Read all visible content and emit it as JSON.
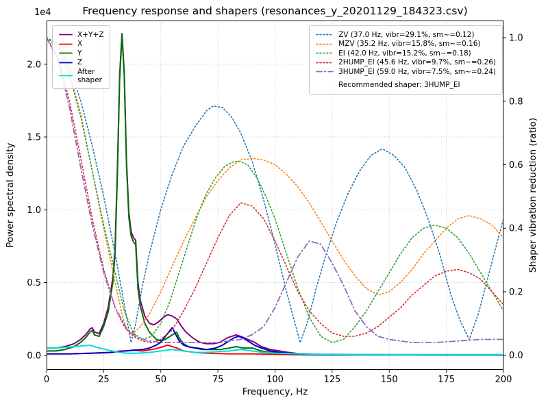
{
  "title": "Frequency response and shapers (resonances_y_20201129_184323.csv)",
  "chart_data": {
    "type": "line",
    "xlabel": "Frequency, Hz",
    "ylabel_left": "Power spectral density",
    "ylabel_right": "Shaper vibration reduction (ratio)",
    "y_left_offset": "1e4",
    "xlim": [
      0,
      200
    ],
    "ylim_left": [
      -0.1,
      2.3
    ],
    "ylim_right": [
      -0.046,
      1.054
    ],
    "grid": true,
    "legend_position_left": "upper left",
    "legend_position_right": "upper right",
    "x_ticks": [
      "0",
      "25",
      "50",
      "75",
      "100",
      "125",
      "150",
      "175",
      "200"
    ],
    "y_left_ticks": [
      "0.0",
      "0.5",
      "1.0",
      "1.5",
      "2.0"
    ],
    "y_right_ticks": [
      "0.0",
      "0.2",
      "0.4",
      "0.6",
      "0.8",
      "1.0"
    ],
    "series": [
      {
        "name": "X+Y+Z",
        "axis": "left",
        "color": "#800080",
        "style": "solid",
        "width": 2,
        "x": [
          0,
          4,
          8,
          12,
          15,
          17,
          19,
          20,
          21,
          23,
          25,
          27,
          29,
          30,
          31,
          32,
          33,
          34,
          35,
          36,
          37,
          38,
          39,
          40,
          41,
          43,
          45,
          47,
          49,
          51,
          53,
          55,
          57,
          59,
          61,
          64,
          67,
          70,
          73,
          76,
          79,
          81,
          83,
          85,
          88,
          91,
          94,
          98,
          102,
          106,
          110,
          120,
          140,
          170,
          200
        ],
        "y": [
          0.05,
          0.05,
          0.06,
          0.08,
          0.11,
          0.14,
          0.18,
          0.19,
          0.16,
          0.15,
          0.22,
          0.33,
          0.53,
          0.74,
          1.28,
          1.93,
          2.21,
          1.94,
          1.33,
          0.98,
          0.85,
          0.81,
          0.79,
          0.5,
          0.38,
          0.27,
          0.22,
          0.21,
          0.23,
          0.26,
          0.28,
          0.27,
          0.25,
          0.2,
          0.16,
          0.12,
          0.09,
          0.08,
          0.08,
          0.09,
          0.12,
          0.13,
          0.14,
          0.13,
          0.11,
          0.09,
          0.06,
          0.04,
          0.03,
          0.02,
          0.012,
          0.007,
          0.005,
          0.004,
          0.004
        ]
      },
      {
        "name": "X",
        "axis": "left",
        "color": "#ff0000",
        "style": "solid",
        "width": 2,
        "x": [
          0,
          10,
          20,
          28,
          32,
          35,
          38,
          42,
          46,
          49,
          51,
          53,
          55,
          57,
          60,
          65,
          70,
          80,
          90,
          100,
          110,
          140,
          200
        ],
        "y": [
          0.01,
          0.01,
          0.015,
          0.02,
          0.03,
          0.03,
          0.035,
          0.03,
          0.04,
          0.05,
          0.06,
          0.07,
          0.06,
          0.05,
          0.03,
          0.02,
          0.015,
          0.01,
          0.01,
          0.007,
          0.005,
          0.004,
          0.003
        ]
      },
      {
        "name": "Y",
        "axis": "left",
        "color": "#007000",
        "style": "solid",
        "width": 2,
        "x": [
          0,
          4,
          8,
          12,
          15,
          17,
          19,
          20,
          21,
          23,
          25,
          27,
          29,
          30,
          31,
          32,
          33,
          34,
          35,
          36,
          37,
          38,
          39,
          40,
          41,
          43,
          45,
          48,
          50,
          52,
          54,
          56,
          57,
          58,
          60,
          62,
          65,
          68,
          72,
          76,
          80,
          83,
          86,
          90,
          94,
          98,
          102,
          106,
          110,
          120,
          140,
          170,
          200
        ],
        "y": [
          0.03,
          0.03,
          0.04,
          0.06,
          0.09,
          0.12,
          0.16,
          0.17,
          0.14,
          0.13,
          0.2,
          0.3,
          0.5,
          0.7,
          1.25,
          1.9,
          2.2,
          1.92,
          1.3,
          0.95,
          0.82,
          0.78,
          0.76,
          0.46,
          0.34,
          0.22,
          0.16,
          0.11,
          0.1,
          0.11,
          0.13,
          0.15,
          0.16,
          0.12,
          0.08,
          0.06,
          0.05,
          0.04,
          0.04,
          0.04,
          0.05,
          0.06,
          0.05,
          0.05,
          0.03,
          0.02,
          0.015,
          0.01,
          0.008,
          0.005,
          0.004,
          0.003,
          0.003
        ]
      },
      {
        "name": "Z",
        "axis": "left",
        "color": "#0000cd",
        "style": "solid",
        "width": 2,
        "x": [
          0,
          10,
          20,
          28,
          34,
          38,
          42,
          45,
          48,
          50,
          52,
          54,
          55,
          56,
          58,
          60,
          63,
          66,
          70,
          74,
          77,
          80,
          82,
          84,
          86,
          88,
          91,
          94,
          98,
          102,
          105,
          108,
          112,
          120,
          140,
          170,
          200
        ],
        "y": [
          0.01,
          0.01,
          0.015,
          0.02,
          0.03,
          0.035,
          0.04,
          0.05,
          0.07,
          0.09,
          0.13,
          0.17,
          0.19,
          0.16,
          0.1,
          0.07,
          0.055,
          0.05,
          0.04,
          0.05,
          0.07,
          0.1,
          0.12,
          0.13,
          0.12,
          0.1,
          0.07,
          0.05,
          0.03,
          0.02,
          0.015,
          0.01,
          0.007,
          0.005,
          0.004,
          0.003,
          0.003
        ]
      },
      {
        "name": "After shaper",
        "axis": "left",
        "color": "#00dcdc",
        "style": "solid",
        "width": 2,
        "x": [
          0,
          4,
          8,
          12,
          16,
          19,
          22,
          26,
          30,
          35,
          40,
          45,
          50,
          55,
          60,
          65,
          70,
          75,
          80,
          85,
          90,
          95,
          100,
          110,
          120,
          140,
          160,
          180,
          200
        ],
        "y": [
          0.05,
          0.05,
          0.055,
          0.06,
          0.065,
          0.07,
          0.055,
          0.04,
          0.025,
          0.015,
          0.015,
          0.02,
          0.03,
          0.04,
          0.03,
          0.02,
          0.02,
          0.025,
          0.03,
          0.04,
          0.03,
          0.02,
          0.015,
          0.01,
          0.008,
          0.006,
          0.005,
          0.005,
          0.005
        ]
      },
      {
        "name": "ZV",
        "axis": "right",
        "color": "#1f77b4",
        "style": "dotted",
        "width": 1.6,
        "x": [
          0,
          5,
          10,
          15,
          20,
          25,
          30,
          33,
          35,
          37,
          39,
          42,
          45,
          50,
          55,
          60,
          65,
          70,
          73,
          77,
          81,
          85,
          90,
          95,
          100,
          105,
          108,
          111,
          114,
          118,
          122,
          127,
          132,
          137,
          142,
          147,
          152,
          157,
          162,
          167,
          172,
          177,
          181,
          185,
          189,
          193,
          197,
          200
        ],
        "y": [
          1.0,
          0.98,
          0.91,
          0.8,
          0.66,
          0.5,
          0.32,
          0.2,
          0.12,
          0.04,
          0.1,
          0.22,
          0.32,
          0.46,
          0.57,
          0.66,
          0.72,
          0.77,
          0.785,
          0.78,
          0.75,
          0.7,
          0.61,
          0.49,
          0.35,
          0.2,
          0.12,
          0.04,
          0.1,
          0.21,
          0.31,
          0.42,
          0.51,
          0.58,
          0.63,
          0.65,
          0.63,
          0.59,
          0.52,
          0.43,
          0.32,
          0.19,
          0.11,
          0.05,
          0.13,
          0.24,
          0.35,
          0.43
        ]
      },
      {
        "name": "MZV",
        "axis": "right",
        "color": "#ff7f0e",
        "style": "dotted",
        "width": 1.6,
        "x": [
          0,
          5,
          10,
          15,
          20,
          25,
          30,
          33,
          35,
          38,
          41,
          45,
          50,
          55,
          60,
          65,
          70,
          75,
          80,
          85,
          90,
          95,
          100,
          105,
          110,
          115,
          120,
          125,
          130,
          135,
          140,
          145,
          150,
          155,
          160,
          165,
          170,
          175,
          180,
          185,
          190,
          195,
          200
        ],
        "y": [
          1.0,
          0.97,
          0.89,
          0.76,
          0.58,
          0.4,
          0.23,
          0.13,
          0.08,
          0.07,
          0.09,
          0.13,
          0.2,
          0.28,
          0.36,
          0.43,
          0.5,
          0.55,
          0.59,
          0.615,
          0.62,
          0.615,
          0.6,
          0.57,
          0.53,
          0.48,
          0.42,
          0.36,
          0.3,
          0.25,
          0.21,
          0.19,
          0.2,
          0.23,
          0.27,
          0.32,
          0.36,
          0.4,
          0.43,
          0.44,
          0.43,
          0.41,
          0.37
        ]
      },
      {
        "name": "EI",
        "axis": "right",
        "color": "#2ca02c",
        "style": "dotted",
        "width": 1.6,
        "x": [
          0,
          5,
          10,
          15,
          20,
          25,
          30,
          34,
          38,
          42,
          46,
          50,
          54,
          58,
          62,
          66,
          70,
          74,
          78,
          82,
          85,
          88,
          92,
          96,
          100,
          105,
          110,
          115,
          120,
          125,
          130,
          135,
          140,
          145,
          150,
          155,
          160,
          165,
          170,
          175,
          180,
          185,
          190,
          195,
          200
        ],
        "y": [
          1.0,
          0.97,
          0.88,
          0.75,
          0.58,
          0.41,
          0.26,
          0.14,
          0.07,
          0.05,
          0.06,
          0.1,
          0.17,
          0.26,
          0.35,
          0.44,
          0.51,
          0.56,
          0.595,
          0.61,
          0.61,
          0.6,
          0.56,
          0.5,
          0.43,
          0.32,
          0.21,
          0.12,
          0.06,
          0.04,
          0.05,
          0.09,
          0.14,
          0.2,
          0.26,
          0.32,
          0.37,
          0.4,
          0.41,
          0.4,
          0.37,
          0.32,
          0.26,
          0.2,
          0.14
        ]
      },
      {
        "name": "2HUMP_EI",
        "axis": "right",
        "color": "#d62728",
        "style": "dotted",
        "width": 1.6,
        "x": [
          0,
          5,
          10,
          15,
          20,
          25,
          30,
          34,
          38,
          42,
          46,
          50,
          55,
          60,
          65,
          70,
          75,
          80,
          85,
          90,
          95,
          100,
          105,
          110,
          115,
          120,
          125,
          130,
          135,
          140,
          145,
          150,
          155,
          160,
          165,
          170,
          175,
          180,
          185,
          190,
          195,
          200
        ],
        "y": [
          1.0,
          0.94,
          0.8,
          0.62,
          0.43,
          0.27,
          0.15,
          0.09,
          0.06,
          0.045,
          0.04,
          0.05,
          0.08,
          0.14,
          0.21,
          0.29,
          0.37,
          0.44,
          0.48,
          0.47,
          0.43,
          0.36,
          0.28,
          0.2,
          0.14,
          0.1,
          0.07,
          0.06,
          0.06,
          0.07,
          0.09,
          0.12,
          0.15,
          0.19,
          0.22,
          0.25,
          0.265,
          0.27,
          0.26,
          0.24,
          0.2,
          0.16
        ]
      },
      {
        "name": "3HUMP_EI",
        "axis": "right",
        "color": "#9467bd",
        "style": "dashdot",
        "width": 1.8,
        "x": [
          0,
          5,
          10,
          15,
          20,
          25,
          30,
          35,
          40,
          45,
          50,
          55,
          60,
          65,
          70,
          75,
          80,
          85,
          90,
          95,
          100,
          105,
          110,
          115,
          120,
          125,
          130,
          135,
          140,
          145,
          150,
          160,
          170,
          180,
          190,
          200
        ],
        "y": [
          1.0,
          0.93,
          0.78,
          0.59,
          0.41,
          0.26,
          0.15,
          0.085,
          0.055,
          0.045,
          0.04,
          0.04,
          0.04,
          0.04,
          0.04,
          0.04,
          0.045,
          0.05,
          0.065,
          0.09,
          0.15,
          0.23,
          0.31,
          0.36,
          0.35,
          0.29,
          0.22,
          0.14,
          0.09,
          0.06,
          0.05,
          0.04,
          0.04,
          0.045,
          0.05,
          0.05
        ]
      }
    ]
  },
  "legend_left": [
    {
      "label": "X+Y+Z",
      "color": "#800080",
      "style": "solid"
    },
    {
      "label": "X",
      "color": "#ff0000",
      "style": "solid"
    },
    {
      "label": "Y",
      "color": "#007000",
      "style": "solid"
    },
    {
      "label": "Z",
      "color": "#0000cd",
      "style": "solid"
    },
    {
      "label": "After\nshaper",
      "color": "#00dcdc",
      "style": "solid"
    }
  ],
  "legend_right": {
    "entries": [
      {
        "label": "ZV (37.0 Hz, vibr=29.1%, sm~=0.12)",
        "color": "#1f77b4",
        "style": "dotted"
      },
      {
        "label": "MZV (35.2 Hz, vibr=15.8%, sm~=0.16)",
        "color": "#ff7f0e",
        "style": "dotted"
      },
      {
        "label": "EI (42.0 Hz, vibr=15.2%, sm~=0.18)",
        "color": "#2ca02c",
        "style": "dotted"
      },
      {
        "label": "2HUMP_EI (45.6 Hz, vibr=9.7%, sm~=0.26)",
        "color": "#d62728",
        "style": "dotted"
      },
      {
        "label": "3HUMP_EI (59.0 Hz, vibr=7.5%, sm~=0.24)",
        "color": "#9467bd",
        "style": "dashdot"
      }
    ],
    "note": "Recommended shaper: 3HUMP_EI"
  }
}
